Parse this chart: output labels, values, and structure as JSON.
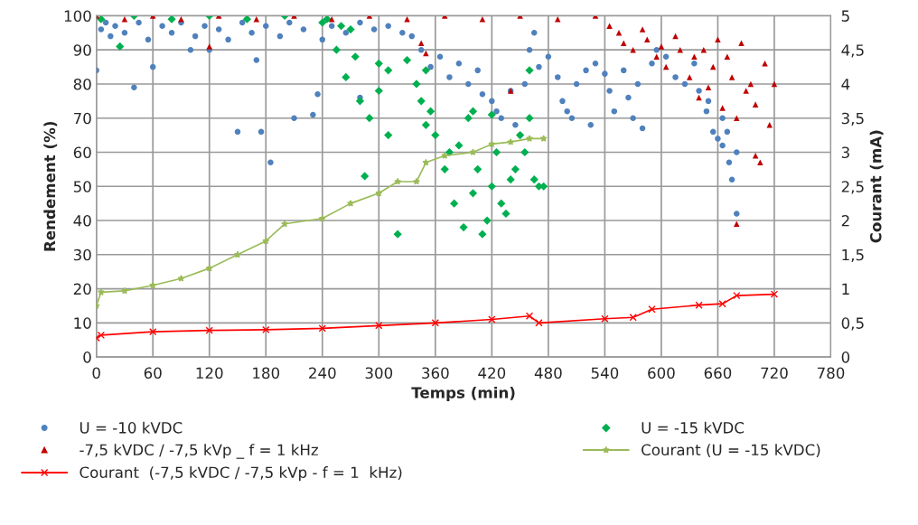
{
  "chart_data": {
    "type": "scatter",
    "xlabel": "Temps (min)",
    "ylabel": "Rendement (%)",
    "y2label": "Courant (mA)",
    "xlim": [
      0,
      780
    ],
    "xticks": [
      0,
      60,
      120,
      180,
      240,
      300,
      360,
      420,
      480,
      540,
      600,
      660,
      720,
      780
    ],
    "ylim": [
      0,
      100
    ],
    "yticks": [
      0,
      10,
      20,
      30,
      40,
      50,
      60,
      70,
      80,
      90,
      100
    ],
    "y2lim": [
      0,
      5
    ],
    "y2ticks": [
      0,
      {
        "value": 0.5,
        "label": "0,5"
      },
      1,
      {
        "value": 1.5,
        "label": "1,5"
      },
      2,
      {
        "value": 2.5,
        "label": "2,5"
      },
      3,
      {
        "value": 3.5,
        "label": "3,5"
      },
      4,
      {
        "value": 4.5,
        "label": "4,5"
      },
      5
    ],
    "grid": true,
    "legend": "bottom",
    "series": [
      {
        "name": "U = -10 kVDC",
        "marker": "circle",
        "color": "#4f81bd",
        "x": [
          0,
          40,
          60,
          150,
          175,
          185,
          210,
          230,
          235,
          120,
          170,
          100,
          280,
          5,
          10,
          15,
          20,
          30,
          45,
          55,
          70,
          80,
          90,
          105,
          115,
          130,
          140,
          155,
          165,
          180,
          195,
          205,
          220,
          240,
          250,
          265,
          280,
          295,
          310,
          325,
          335,
          345,
          355,
          365,
          375,
          385,
          395,
          405,
          410,
          420,
          425,
          430,
          440,
          445,
          450,
          455,
          460,
          465,
          470,
          480,
          490,
          495,
          500,
          505,
          510,
          520,
          525,
          530,
          540,
          545,
          550,
          560,
          565,
          570,
          575,
          580,
          590,
          595,
          605,
          615,
          625,
          635,
          640,
          648,
          655,
          660,
          665,
          670,
          672,
          675,
          680,
          680,
          665,
          650
        ],
        "values": [
          84,
          79,
          85,
          66,
          66,
          57,
          70,
          71,
          77,
          90,
          87,
          90,
          76,
          96,
          98,
          94,
          97,
          95,
          98,
          93,
          97,
          95,
          98,
          94,
          97,
          96,
          93,
          98,
          95,
          97,
          94,
          98,
          96,
          93,
          97,
          95,
          98,
          96,
          97,
          95,
          94,
          90,
          85,
          88,
          82,
          86,
          80,
          84,
          77,
          75,
          72,
          70,
          78,
          68,
          65,
          80,
          90,
          95,
          85,
          88,
          82,
          75,
          72,
          70,
          80,
          84,
          68,
          86,
          83,
          78,
          72,
          84,
          76,
          70,
          80,
          67,
          86,
          90,
          88,
          82,
          80,
          86,
          78,
          72,
          66,
          64,
          62,
          66,
          57,
          52,
          60,
          42,
          70,
          75
        ]
      },
      {
        "name": "U = -15 kVDC",
        "marker": "diamond",
        "color": "#00b050",
        "x": [
          5,
          25,
          40,
          80,
          120,
          160,
          200,
          240,
          245,
          260,
          270,
          255,
          265,
          275,
          280,
          290,
          300,
          310,
          320,
          285,
          330,
          340,
          345,
          350,
          355,
          360,
          370,
          375,
          380,
          385,
          390,
          395,
          400,
          405,
          410,
          415,
          420,
          425,
          430,
          435,
          440,
          445,
          450,
          455,
          460,
          465,
          470,
          475,
          300,
          310,
          350,
          400,
          420,
          460
        ],
        "values": [
          99,
          91,
          100,
          99,
          100,
          99,
          100,
          98,
          99,
          97,
          96,
          90,
          82,
          88,
          75,
          70,
          78,
          65,
          36,
          53,
          87,
          80,
          75,
          68,
          72,
          65,
          55,
          60,
          45,
          62,
          38,
          70,
          48,
          55,
          36,
          40,
          50,
          60,
          45,
          42,
          52,
          55,
          65,
          60,
          70,
          52,
          50,
          50,
          86,
          84,
          84,
          72,
          71,
          84
        ]
      },
      {
        "name": "-7,5 kVDC / -7,5 kVp _ f = 1 kHz",
        "marker": "triangle",
        "color": "#c00000",
        "x": [
          0,
          30,
          60,
          90,
          130,
          170,
          210,
          250,
          290,
          330,
          370,
          410,
          450,
          490,
          530,
          120,
          345,
          350,
          440,
          545,
          555,
          560,
          570,
          580,
          585,
          595,
          600,
          605,
          615,
          620,
          630,
          635,
          640,
          645,
          650,
          655,
          660,
          665,
          670,
          675,
          680,
          680,
          685,
          690,
          695,
          700,
          705,
          710,
          715,
          720,
          700
        ],
        "values": [
          100,
          99,
          100,
          99,
          100,
          99,
          100,
          99,
          100,
          99,
          100,
          99,
          100,
          99,
          100,
          91,
          92,
          89,
          78,
          97,
          95,
          92,
          90,
          96,
          93,
          88,
          91,
          85,
          94,
          90,
          82,
          88,
          76,
          90,
          79,
          85,
          93,
          73,
          88,
          82,
          70,
          39,
          92,
          78,
          80,
          74,
          57,
          86,
          68,
          80,
          59
        ]
      },
      {
        "name": "Courant (U = -15 kVDC)",
        "type": "line",
        "axis": "y2",
        "marker": "star",
        "color": "#9bbb59",
        "x": [
          0,
          5,
          30,
          60,
          90,
          120,
          150,
          180,
          200,
          240,
          270,
          300,
          320,
          340,
          350,
          370,
          400,
          420,
          440,
          460,
          475
        ],
        "values": [
          0.75,
          0.95,
          0.97,
          1.05,
          1.15,
          1.3,
          1.5,
          1.7,
          1.95,
          2.03,
          2.25,
          2.4,
          2.57,
          2.57,
          2.85,
          2.95,
          3.0,
          3.12,
          3.15,
          3.2,
          3.2
        ]
      },
      {
        "name": "Courant  (-7,5 kVDC / -7,5 kVp - f = 1  kHz)",
        "type": "line",
        "axis": "y2",
        "marker": "cross",
        "color": "#ff0000",
        "x": [
          0,
          5,
          60,
          120,
          180,
          240,
          300,
          360,
          420,
          460,
          470,
          540,
          570,
          590,
          640,
          665,
          680,
          720
        ],
        "values": [
          0.28,
          0.32,
          0.37,
          0.39,
          0.4,
          0.42,
          0.46,
          0.5,
          0.55,
          0.6,
          0.5,
          0.56,
          0.58,
          0.7,
          0.76,
          0.78,
          0.9,
          0.92
        ]
      }
    ]
  }
}
